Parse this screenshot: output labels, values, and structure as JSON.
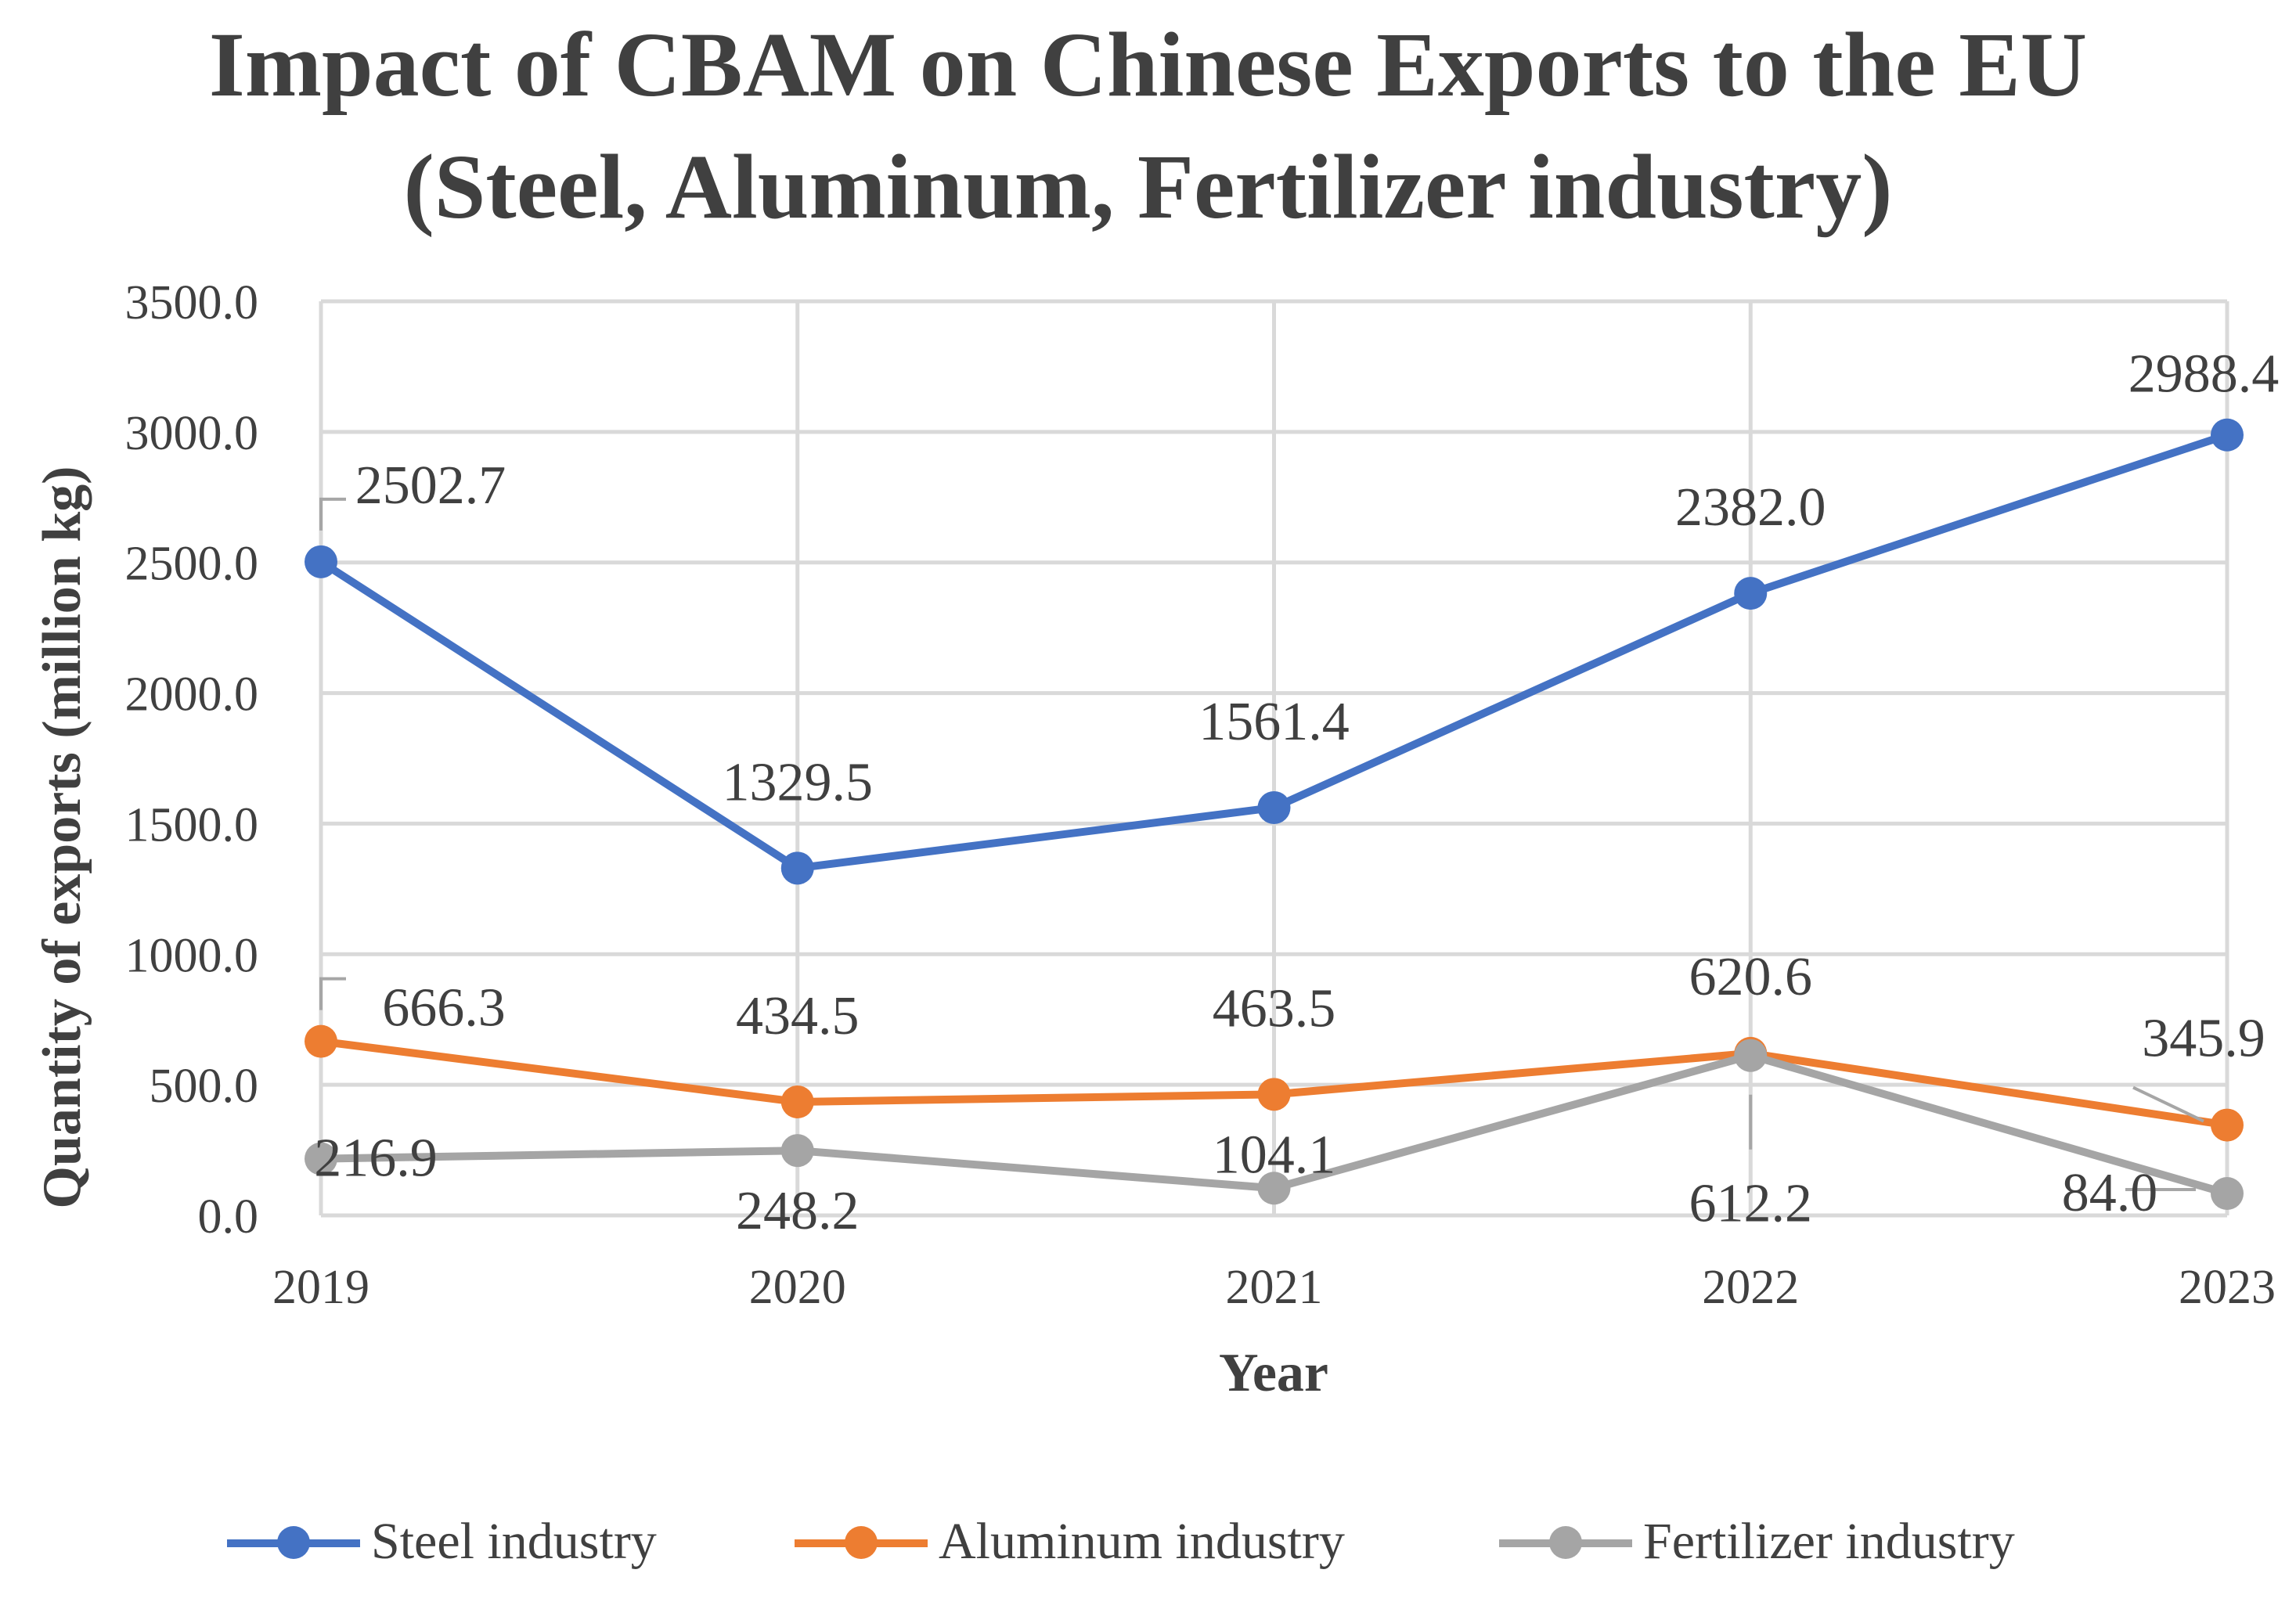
{
  "chart_data": {
    "type": "line",
    "title_line1": "Impact of CBAM on Chinese Exports to the EU",
    "title_line2": "(Steel, Aluminum,  Fertilizer industry)",
    "xlabel": "Year",
    "ylabel": "Quantity of  exports (million kg)",
    "categories": [
      "2019",
      "2020",
      "2021",
      "2022",
      "2023"
    ],
    "yticks": [
      "0.0",
      "500.0",
      "1000.0",
      "1500.0",
      "2000.0",
      "2500.0",
      "3000.0",
      "3500.0"
    ],
    "ylim": [
      0,
      3500
    ],
    "grid": true,
    "legend_position": "bottom",
    "series": [
      {
        "name": "Steel industry",
        "color": "#4472C4",
        "values": [
          2502.7,
          1329.5,
          1561.4,
          2382.0,
          2988.4
        ],
        "labels": [
          "2502.7",
          "1329.5",
          "1561.4",
          "2382.0",
          "2988.4"
        ]
      },
      {
        "name": "Aluminum industry",
        "color": "#ED7D31",
        "values": [
          666.3,
          434.5,
          463.5,
          620.6,
          345.9
        ],
        "labels": [
          "666.3",
          "434.5",
          "463.5",
          "620.6",
          "345.9"
        ]
      },
      {
        "name": "Fertilizer industry",
        "color": "#A5A5A5",
        "values": [
          216.9,
          248.2,
          104.1,
          612.2,
          84.0
        ],
        "labels": [
          "216.9",
          "248.2",
          "104.1",
          "612.2",
          "84.0"
        ]
      }
    ]
  }
}
